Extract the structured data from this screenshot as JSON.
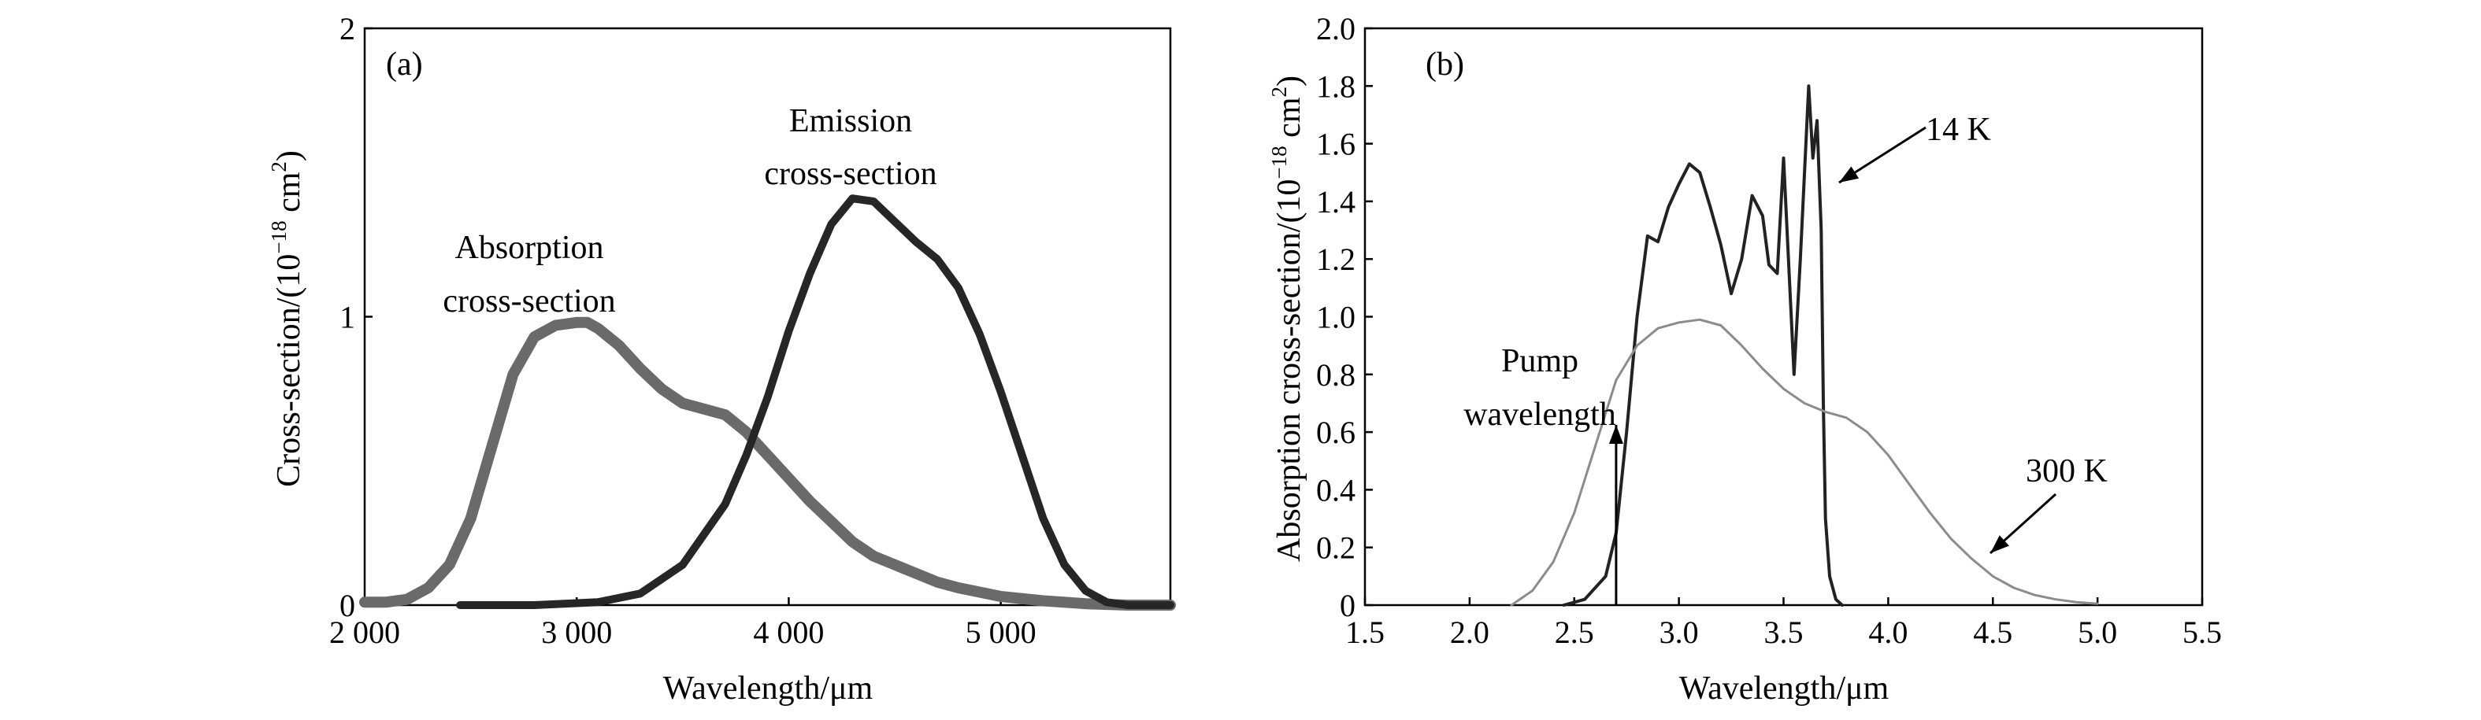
{
  "chart_data": [
    {
      "panel": "(a)",
      "type": "line",
      "title": "",
      "xlabel": "Wavelength/μm",
      "ylabel": "Cross-section/(10",
      "ylabel_exp": "−18",
      "ylabel_unit": " cm",
      "ylabel_unit_exp": "2",
      "ylabel_close": ")",
      "xlim": [
        2000,
        5800
      ],
      "ylim": [
        0,
        2
      ],
      "xticks": [
        2000,
        3000,
        4000,
        5000
      ],
      "xtick_labels": [
        "2 000",
        "3 000",
        "4 000",
        "5 000"
      ],
      "yticks": [
        0,
        1,
        2
      ],
      "ytick_labels": [
        "0",
        "1",
        "2"
      ],
      "grid": false,
      "series": [
        {
          "annotation": [
            "Absorption",
            "cross-section"
          ],
          "color": "#6a6a6a",
          "x": [
            2000,
            2100,
            2200,
            2300,
            2400,
            2500,
            2600,
            2700,
            2800,
            2900,
            3000,
            3050,
            3100,
            3200,
            3300,
            3400,
            3500,
            3600,
            3700,
            3800,
            3900,
            4000,
            4100,
            4200,
            4300,
            4400,
            4500,
            4600,
            4700,
            4800,
            5000,
            5200,
            5400,
            5600,
            5800
          ],
          "y": [
            0.01,
            0.01,
            0.02,
            0.06,
            0.14,
            0.3,
            0.55,
            0.8,
            0.93,
            0.97,
            0.98,
            0.98,
            0.96,
            0.9,
            0.82,
            0.75,
            0.7,
            0.68,
            0.66,
            0.6,
            0.52,
            0.44,
            0.36,
            0.29,
            0.22,
            0.17,
            0.14,
            0.11,
            0.08,
            0.06,
            0.03,
            0.015,
            0.005,
            0.0,
            0.0
          ]
        },
        {
          "annotation": [
            "Emission",
            "cross-section"
          ],
          "color": "#262626",
          "x": [
            2450,
            2800,
            3100,
            3300,
            3500,
            3700,
            3800,
            3900,
            4000,
            4100,
            4200,
            4300,
            4400,
            4500,
            4600,
            4700,
            4800,
            4900,
            5000,
            5100,
            5200,
            5300,
            5400,
            5500,
            5600,
            5800
          ],
          "y": [
            0.0,
            0.0,
            0.01,
            0.04,
            0.14,
            0.35,
            0.52,
            0.72,
            0.95,
            1.15,
            1.32,
            1.41,
            1.4,
            1.33,
            1.26,
            1.2,
            1.1,
            0.94,
            0.74,
            0.52,
            0.3,
            0.14,
            0.05,
            0.01,
            0.0,
            0.0
          ]
        }
      ]
    },
    {
      "panel": "(b)",
      "type": "line",
      "title": "",
      "xlabel": "Wavelength/μm",
      "ylabel": "Absorption cross-section/(10",
      "ylabel_exp": "−18",
      "ylabel_unit": " cm",
      "ylabel_unit_exp": "2",
      "ylabel_close": ")",
      "xlim": [
        1.5,
        5.5
      ],
      "ylim": [
        0,
        2.0
      ],
      "xticks": [
        1.5,
        2.0,
        2.5,
        3.0,
        3.5,
        4.0,
        4.5,
        5.0,
        5.5
      ],
      "xtick_labels": [
        "1.5",
        "2.0",
        "2.5",
        "3.0",
        "3.5",
        "4.0",
        "4.5",
        "5.0",
        "5.5"
      ],
      "yticks": [
        0,
        0.2,
        0.4,
        0.6,
        0.8,
        1.0,
        1.2,
        1.4,
        1.6,
        1.8,
        2.0
      ],
      "ytick_labels": [
        "0",
        "0.2",
        "0.4",
        "0.6",
        "0.8",
        "1.0",
        "1.2",
        "1.4",
        "1.6",
        "1.8",
        "2.0"
      ],
      "grid": false,
      "annotations": {
        "pump": [
          "Pump",
          "wavelength"
        ],
        "pump_x": 2.7
      },
      "series": [
        {
          "annotation": "14 K",
          "color": "#222222",
          "x": [
            2.45,
            2.55,
            2.65,
            2.7,
            2.75,
            2.8,
            2.85,
            2.9,
            2.95,
            3.0,
            3.05,
            3.1,
            3.15,
            3.2,
            3.25,
            3.3,
            3.35,
            3.4,
            3.43,
            3.47,
            3.5,
            3.55,
            3.58,
            3.62,
            3.64,
            3.66,
            3.68,
            3.69,
            3.7,
            3.72,
            3.75,
            3.78
          ],
          "y": [
            0.0,
            0.02,
            0.1,
            0.25,
            0.6,
            1.0,
            1.28,
            1.26,
            1.38,
            1.46,
            1.53,
            1.5,
            1.38,
            1.25,
            1.08,
            1.2,
            1.42,
            1.35,
            1.18,
            1.15,
            1.55,
            0.8,
            1.2,
            1.8,
            1.55,
            1.68,
            1.3,
            0.7,
            0.3,
            0.1,
            0.02,
            0.0
          ]
        },
        {
          "annotation": "300 K",
          "color": "#8c8c8c",
          "x": [
            2.2,
            2.3,
            2.4,
            2.5,
            2.6,
            2.7,
            2.8,
            2.9,
            3.0,
            3.1,
            3.2,
            3.3,
            3.4,
            3.5,
            3.6,
            3.7,
            3.8,
            3.9,
            4.0,
            4.1,
            4.2,
            4.3,
            4.4,
            4.5,
            4.6,
            4.7,
            4.8,
            4.9,
            5.0
          ],
          "y": [
            0.0,
            0.05,
            0.15,
            0.32,
            0.55,
            0.78,
            0.9,
            0.96,
            0.98,
            0.99,
            0.97,
            0.9,
            0.82,
            0.75,
            0.7,
            0.67,
            0.65,
            0.6,
            0.52,
            0.42,
            0.32,
            0.23,
            0.16,
            0.1,
            0.06,
            0.035,
            0.02,
            0.01,
            0.005
          ]
        }
      ]
    }
  ]
}
